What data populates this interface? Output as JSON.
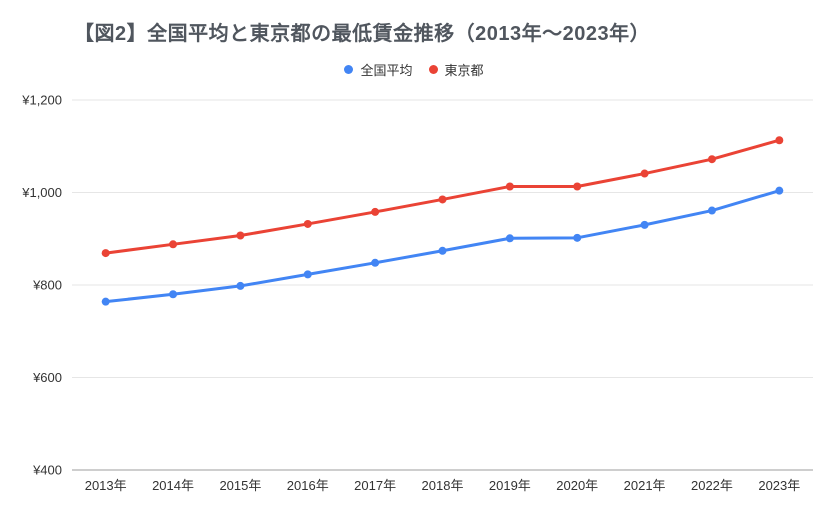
{
  "chart_data": {
    "type": "line",
    "title": "【図2】全国平均と東京都の最低賃金推移（2013年〜2023年）",
    "categories": [
      "2013年",
      "2014年",
      "2015年",
      "2016年",
      "2017年",
      "2018年",
      "2019年",
      "2020年",
      "2021年",
      "2022年",
      "2023年"
    ],
    "series": [
      {
        "name": "全国平均",
        "slug": "national-average",
        "color": "#4285F4",
        "values": [
          764,
          780,
          798,
          823,
          848,
          874,
          901,
          902,
          930,
          961,
          1004
        ]
      },
      {
        "name": "東京都",
        "slug": "tokyo",
        "color": "#EA4335",
        "values": [
          869,
          888,
          907,
          932,
          958,
          985,
          1013,
          1013,
          1041,
          1072,
          1113
        ]
      }
    ],
    "y_axis": {
      "min": 400,
      "max": 1200,
      "tick_values": [
        1200,
        1000,
        800,
        600,
        400
      ],
      "tick_labels": [
        "¥1,200",
        "¥1,000",
        "¥800",
        "¥600",
        "¥400"
      ]
    },
    "legend_position": "top",
    "grid": true,
    "colors": {
      "grid_line": "#e6e6e6",
      "axis_line": "#9e9e9e",
      "tick_text": "#333333",
      "title_text": "#50565e",
      "background": "#ffffff"
    }
  }
}
